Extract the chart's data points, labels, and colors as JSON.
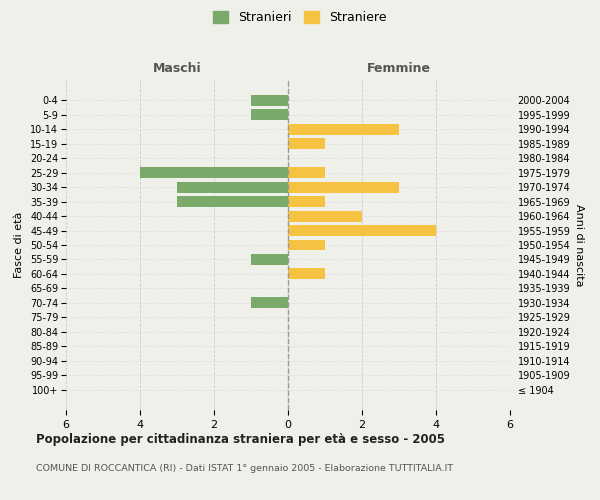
{
  "age_groups": [
    "100+",
    "95-99",
    "90-94",
    "85-89",
    "80-84",
    "75-79",
    "70-74",
    "65-69",
    "60-64",
    "55-59",
    "50-54",
    "45-49",
    "40-44",
    "35-39",
    "30-34",
    "25-29",
    "20-24",
    "15-19",
    "10-14",
    "5-9",
    "0-4"
  ],
  "birth_years": [
    "≤ 1904",
    "1905-1909",
    "1910-1914",
    "1915-1919",
    "1920-1924",
    "1925-1929",
    "1930-1934",
    "1935-1939",
    "1940-1944",
    "1945-1949",
    "1950-1954",
    "1955-1959",
    "1960-1964",
    "1965-1969",
    "1970-1974",
    "1975-1979",
    "1980-1984",
    "1985-1989",
    "1990-1994",
    "1995-1999",
    "2000-2004"
  ],
  "maschi": [
    0,
    0,
    0,
    0,
    0,
    0,
    1,
    0,
    0,
    1,
    0,
    0,
    0,
    3,
    3,
    4,
    0,
    0,
    0,
    1,
    1
  ],
  "femmine": [
    0,
    0,
    0,
    0,
    0,
    0,
    0,
    0,
    1,
    0,
    1,
    4,
    2,
    1,
    3,
    1,
    0,
    1,
    3,
    0,
    0
  ],
  "maschi_color": "#7aaa69",
  "femmine_color": "#f5c242",
  "background_color": "#f0f0eb",
  "grid_color": "#cccccc",
  "title": "Popolazione per cittadinanza straniera per età e sesso - 2005",
  "subtitle": "COMUNE DI ROCCANTICA (RI) - Dati ISTAT 1° gennaio 2005 - Elaborazione TUTTITALIA.IT",
  "xlabel_left": "Maschi",
  "xlabel_right": "Femmine",
  "ylabel_left": "Fasce di età",
  "ylabel_right": "Anni di nascita",
  "legend_stranieri": "Stranieri",
  "legend_straniere": "Straniere",
  "xlim": 6,
  "bar_height": 0.75
}
